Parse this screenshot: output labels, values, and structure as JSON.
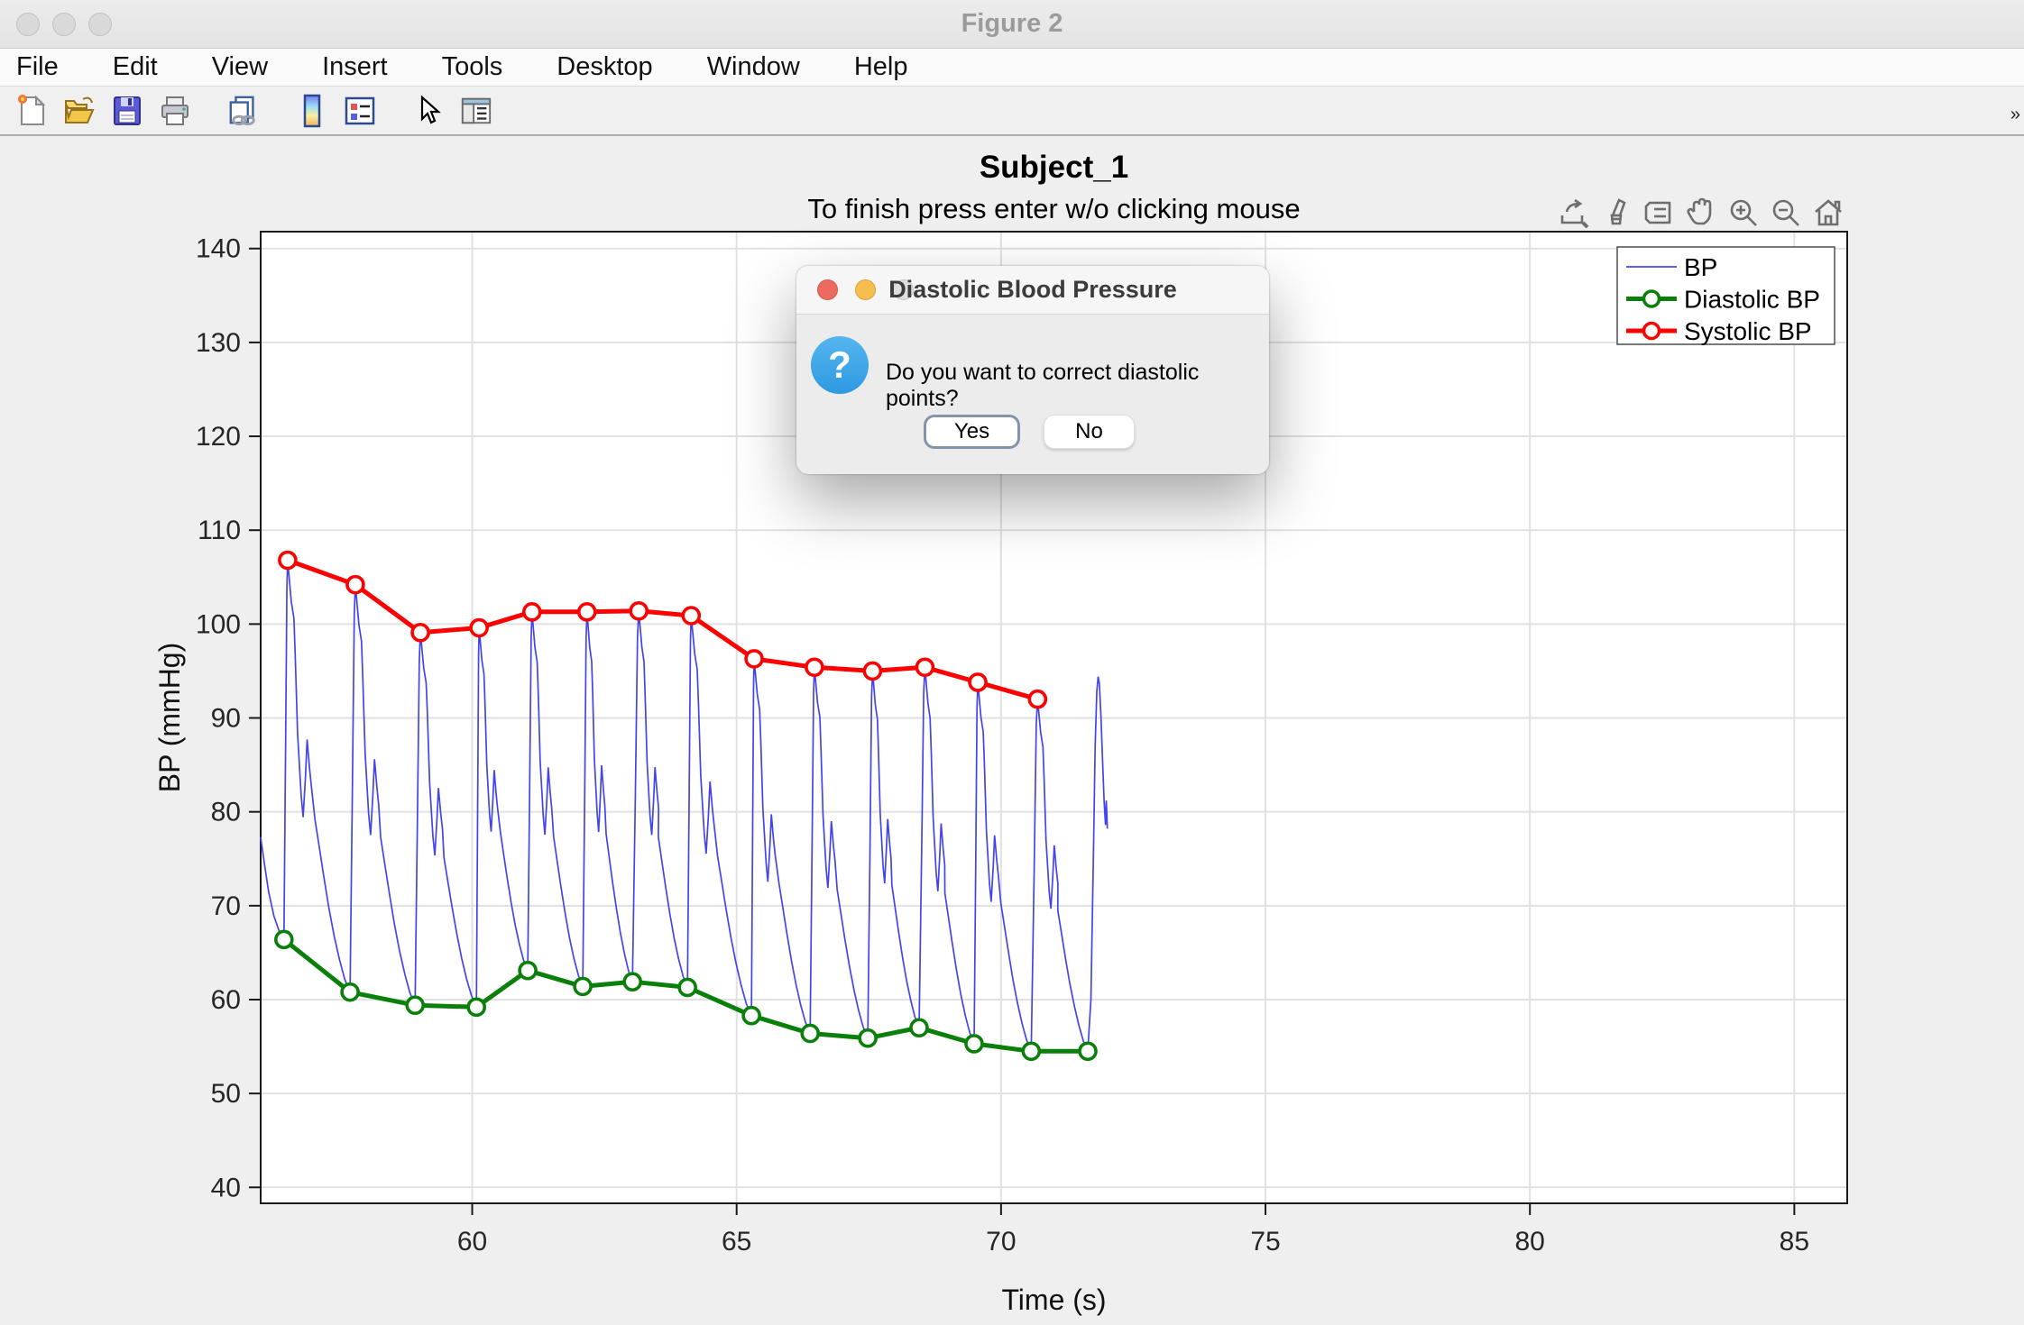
{
  "window": {
    "title": "Figure 2"
  },
  "menu_bar": {
    "items": [
      "File",
      "Edit",
      "View",
      "Insert",
      "Tools",
      "Desktop",
      "Window",
      "Help"
    ]
  },
  "toolbar": {
    "icons": [
      "new-figure",
      "open-file",
      "save-figure",
      "print-figure",
      "link-plot",
      "insert-colorbar",
      "insert-legend",
      "edit-plot",
      "plot-browser"
    ],
    "overflow_indicator": "»"
  },
  "figure": {
    "title": "Subject_1",
    "subtitle": "To finish press enter w/o clicking mouse",
    "axes_toolbar": [
      "export",
      "brush",
      "datatips",
      "pan",
      "zoom-in",
      "zoom-out",
      "restore-view"
    ]
  },
  "chart_data": {
    "type": "line",
    "title": "Subject_1",
    "subtitle": "To finish press enter w/o clicking mouse",
    "xlabel": "Time (s)",
    "ylabel": "BP (mmHg)",
    "xlim": [
      56,
      86
    ],
    "ylim": [
      38.3,
      141.8
    ],
    "xticks": [
      60,
      65,
      70,
      75,
      80,
      85
    ],
    "yticks": [
      40,
      50,
      60,
      70,
      80,
      90,
      100,
      110,
      120,
      130,
      140
    ],
    "grid": true,
    "colors": {
      "bp": "#4444ee",
      "diastolic": "#0a800a",
      "systolic": "#ff0000",
      "grid": "#e1e1e1",
      "axis": "#1a1a1a",
      "tick_label": "#262626"
    },
    "legend": {
      "position": "northeast",
      "entries": [
        {
          "label": "BP",
          "color": "#4444ee",
          "thick": false,
          "marker": false
        },
        {
          "label": "Diastolic BP",
          "color": "#0a800a",
          "thick": true,
          "marker": true
        },
        {
          "label": "Systolic BP",
          "color": "#ff0000",
          "thick": true,
          "marker": true
        }
      ]
    },
    "series": [
      {
        "name": "Diastolic BP",
        "points": [
          [
            56.44,
            66.4
          ],
          [
            57.69,
            60.8
          ],
          [
            58.92,
            59.4
          ],
          [
            60.08,
            59.2
          ],
          [
            61.05,
            63.1
          ],
          [
            62.09,
            61.4
          ],
          [
            63.03,
            61.9
          ],
          [
            64.07,
            61.3
          ],
          [
            65.28,
            58.3
          ],
          [
            66.39,
            56.4
          ],
          [
            67.48,
            55.9
          ],
          [
            68.45,
            57.0
          ],
          [
            69.49,
            55.3
          ],
          [
            70.57,
            54.5
          ],
          [
            71.64,
            54.5
          ]
        ]
      },
      {
        "name": "Systolic BP",
        "points": [
          [
            56.51,
            106.8
          ],
          [
            57.79,
            104.2
          ],
          [
            59.02,
            99.1
          ],
          [
            60.13,
            99.6
          ],
          [
            61.13,
            101.3
          ],
          [
            62.17,
            101.3
          ],
          [
            63.15,
            101.4
          ],
          [
            64.14,
            100.9
          ],
          [
            65.33,
            96.3
          ],
          [
            66.47,
            95.4
          ],
          [
            67.57,
            95.0
          ],
          [
            68.56,
            95.4
          ],
          [
            69.56,
            93.8
          ],
          [
            70.69,
            92.0
          ]
        ]
      }
    ],
    "waveform": {
      "name": "BP",
      "lead_in": [
        [
          56.0,
          77.3
        ],
        [
          56.07,
          74.5
        ],
        [
          56.15,
          71.5
        ],
        [
          56.25,
          68.9
        ],
        [
          56.35,
          67.3
        ],
        [
          56.44,
          66.4
        ]
      ],
      "tail": [
        [
          71.7,
          60.0
        ],
        [
          71.745,
          75.0
        ],
        [
          71.78,
          87.0
        ],
        [
          71.81,
          92.8
        ],
        [
          71.835,
          94.4
        ],
        [
          71.86,
          93.6
        ],
        [
          71.89,
          90.0
        ],
        [
          71.92,
          85.5
        ],
        [
          71.95,
          81.0
        ],
        [
          71.975,
          78.6
        ],
        [
          71.99,
          81.2
        ],
        [
          72.0,
          79.9
        ],
        [
          72.01,
          78.2
        ]
      ],
      "beat_shape": {
        "rise": [
          [
            0.45,
            0.5
          ],
          [
            0.8,
            0.93
          ]
        ],
        "post_peak": [
          [
            0.055,
            0.905
          ],
          [
            0.095,
            0.865
          ],
          [
            0.115,
            0.78
          ],
          [
            0.15,
            0.6
          ],
          [
            0.205,
            0.455
          ],
          [
            0.235,
            0.405
          ],
          [
            0.27,
            0.5
          ],
          [
            0.295,
            0.585
          ],
          [
            0.33,
            0.52
          ],
          [
            0.36,
            0.475
          ]
        ],
        "decay": [
          [
            0.47,
            0.4
          ],
          [
            0.54,
            0.33
          ],
          [
            0.6,
            0.27
          ],
          [
            0.68,
            0.195
          ],
          [
            0.76,
            0.13
          ],
          [
            0.84,
            0.075
          ],
          [
            0.92,
            0.03
          ],
          [
            1.0,
            0.0
          ]
        ]
      }
    }
  },
  "dialog": {
    "title": "Diastolic Blood Pressure",
    "message": "Do you want to correct diastolic points?",
    "icon": "question",
    "buttons": [
      {
        "label": "Yes",
        "focused": true
      },
      {
        "label": "No",
        "focused": false
      }
    ]
  }
}
